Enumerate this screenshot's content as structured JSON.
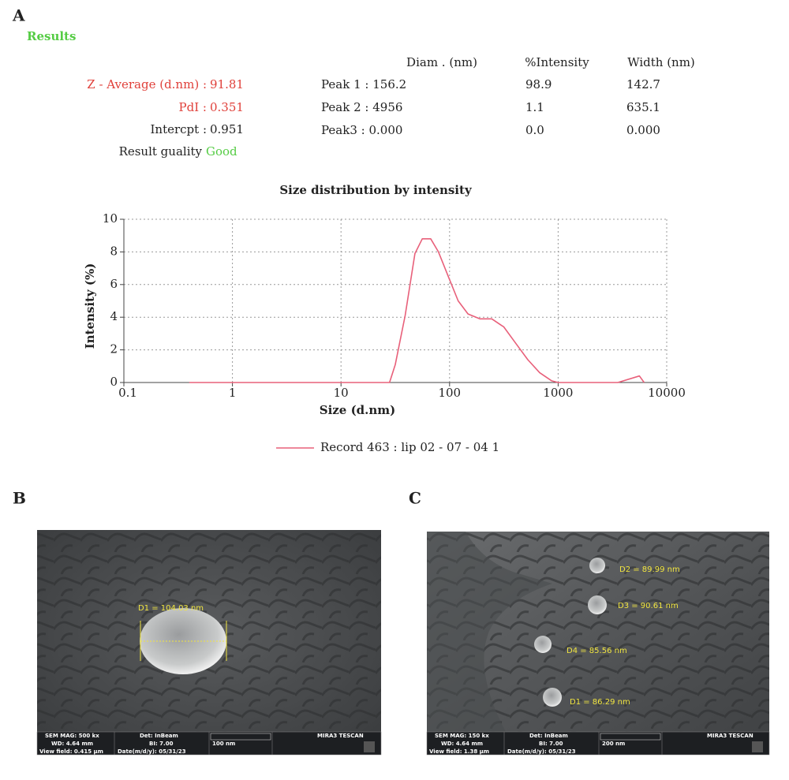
{
  "panels": [
    "A",
    "B",
    "C"
  ],
  "results": {
    "title": "Results",
    "summary": [
      {
        "label": "Z - Average (d.nm) :",
        "value": "91.81"
      },
      {
        "label": "PdI :",
        "value": "0.351"
      },
      {
        "label": "Intercpt :",
        "value": "0.951"
      },
      {
        "label": "Result guality",
        "value": "Good"
      }
    ],
    "table": {
      "header": [
        "Diam . (nm)",
        "%Intensity",
        "Width (nm)"
      ],
      "rows": [
        [
          "Peak 1 : 156.2",
          "98.9",
          "142.7"
        ],
        [
          "Peak 2 : 4956",
          "1.1",
          "635.1"
        ],
        [
          "Peak3 : 0.000",
          "0.0",
          "0.000"
        ]
      ]
    }
  },
  "chart_data": {
    "type": "line",
    "title": "Size distribution by intensity",
    "xlabel": "Size (d.nm)",
    "ylabel": "Intensity (%)",
    "xscale": "log",
    "grid": true,
    "xlim": [
      0.1,
      10000
    ],
    "xticks": [
      0.1,
      1,
      10,
      100,
      1000,
      10000
    ],
    "ylim": [
      0,
      10
    ],
    "yticks": [
      0,
      2,
      4,
      6,
      8,
      10
    ],
    "x": [
      0.4,
      28,
      31.6,
      39,
      48,
      56,
      67,
      79,
      100,
      120,
      148,
      190,
      245,
      316,
      407,
      525,
      676,
      873,
      1000,
      3548,
      5600,
      6200
    ],
    "series": [
      {
        "name": "Record 463 : lip 02 - 07 - 04 1",
        "color": "#e8607a",
        "values": [
          0,
          0,
          1.1,
          4.1,
          7.9,
          8.8,
          8.8,
          8,
          6.3,
          5,
          4.2,
          3.9,
          3.9,
          3.4,
          2.4,
          1.4,
          0.6,
          0.1,
          0,
          0,
          0.4,
          0
        ]
      }
    ]
  },
  "images": [
    {
      "annotations": [
        "D1 = 104.03 nm"
      ],
      "info": [
        "SEM MAG: 500 kx",
        "Det: InBeam",
        "100 nm",
        "MIRA3 TESCAN",
        "WD: 4.64 mm",
        "BI: 7.00",
        "View field: 0.415 μm",
        "Date(m/d/y): 05/31/23"
      ]
    },
    {
      "annotations": [
        "D2 = 89.99 nm",
        "D3 = 90.61 nm",
        "D4 = 85.56 nm",
        "D1 = 86.29 nm"
      ],
      "info": [
        "SEM MAG: 150 kx",
        "Det: InBeam",
        "200 nm",
        "MIRA3 TESCAN",
        "WD: 4.64 mm",
        "BI: 7.00",
        "View field: 1.38 μm",
        "Date(m/d/y): 05/31/23"
      ]
    }
  ]
}
